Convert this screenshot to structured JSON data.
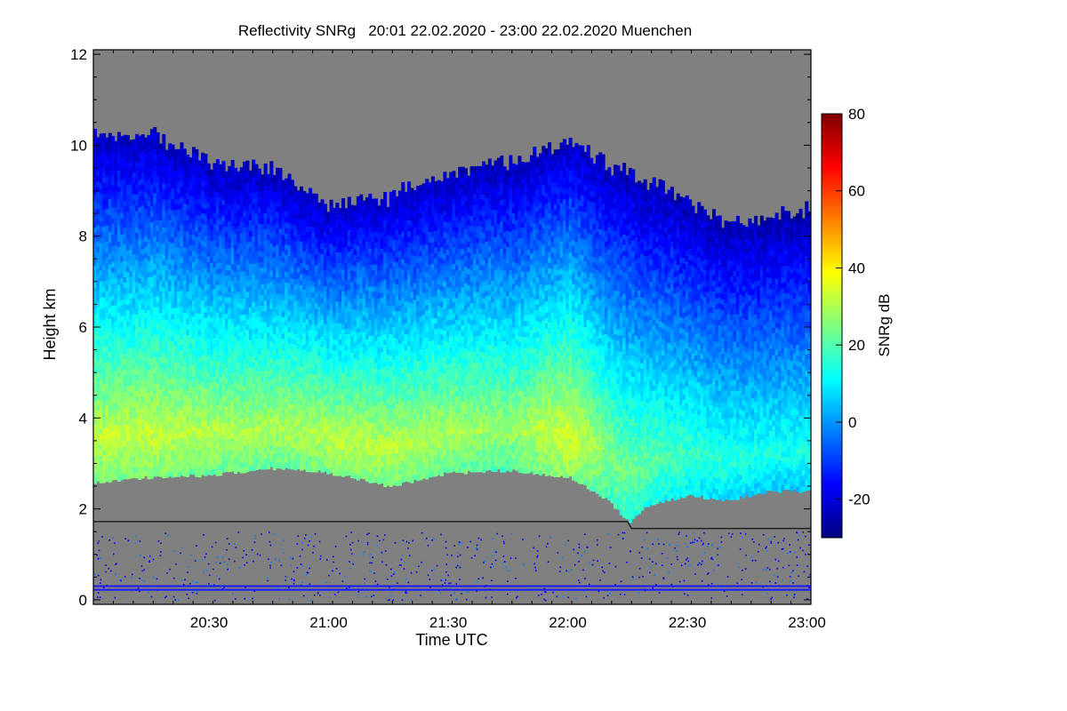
{
  "chart_data": {
    "type": "heatmap",
    "title": "Reflectivity SNRg   20:01 22.02.2020 - 23:00 22.02.2020 Muenchen",
    "xlabel": "Time UTC",
    "ylabel": "Height km",
    "colorbar_label": "SNRg dB",
    "x_range_minutes_of_day": [
      1201,
      1381
    ],
    "x_ticks": [
      {
        "label": "20:30",
        "minute": 1230
      },
      {
        "label": "21:00",
        "minute": 1260
      },
      {
        "label": "21:30",
        "minute": 1290
      },
      {
        "label": "22:00",
        "minute": 1320
      },
      {
        "label": "22:30",
        "minute": 1350
      },
      {
        "label": "23:00",
        "minute": 1380
      }
    ],
    "ylim": [
      -0.1,
      12.1
    ],
    "y_ticks": [
      0,
      2,
      4,
      6,
      8,
      10,
      12
    ],
    "colorbar_range": [
      -30,
      80
    ],
    "colorbar_ticks": [
      -20,
      0,
      20,
      40,
      60,
      80
    ],
    "colormap": [
      "#00007f",
      "#0000ff",
      "#007fff",
      "#00ffff",
      "#7fff7f",
      "#ffff00",
      "#ff7f00",
      "#ff0000",
      "#7f0000"
    ],
    "no_signal_color": "#808080",
    "cloud_base_line": [
      {
        "minute": 1201,
        "height_km": 1.72
      },
      {
        "minute": 1335,
        "height_km": 1.72
      },
      {
        "minute": 1336,
        "height_km": 1.57
      },
      {
        "minute": 1381,
        "height_km": 1.57
      }
    ],
    "echo_layer": {
      "time_minutes": [
        1201,
        1215,
        1230,
        1245,
        1260,
        1275,
        1290,
        1305,
        1320,
        1330,
        1335,
        1340,
        1350,
        1360,
        1370,
        1381
      ],
      "base_km": [
        2.6,
        2.7,
        2.75,
        2.9,
        2.8,
        2.5,
        2.8,
        2.85,
        2.7,
        2.2,
        1.7,
        2.1,
        2.3,
        2.2,
        2.4,
        2.4
      ],
      "top_km": [
        10.1,
        10.2,
        9.6,
        9.4,
        8.6,
        8.8,
        9.3,
        9.6,
        10.0,
        9.5,
        9.4,
        9.1,
        8.7,
        8.2,
        8.3,
        8.6
      ],
      "peak_snr_db": [
        32,
        33,
        31,
        30,
        32,
        32,
        30,
        28,
        35,
        26,
        24,
        22,
        18,
        16,
        14,
        14
      ]
    }
  }
}
